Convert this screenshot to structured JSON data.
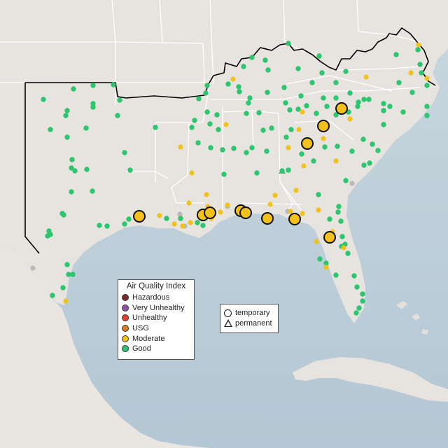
{
  "legend": {
    "title": "Air Quality Index",
    "categories": [
      {
        "label": "Hazardous",
        "color": "#7e2a2a"
      },
      {
        "label": "Very Unhealthy",
        "color": "#8f4fae"
      },
      {
        "label": "Unhealthy",
        "color": "#e0412b"
      },
      {
        "label": "USG",
        "color": "#e07b1a"
      },
      {
        "label": "Moderate",
        "color": "#f2c11b"
      },
      {
        "label": "Good",
        "color": "#2ec56f"
      }
    ]
  },
  "type_legend": {
    "temporary": "temporary",
    "permanent": "permanent"
  },
  "colors": {
    "land": "#e7e3df",
    "gulf_water": "#b7cad6",
    "ocean": "#c9d7de",
    "region_outline": "#000000",
    "state_border": "#ffffff",
    "no_data": "#b9b9b9"
  },
  "icons": {
    "temporary": "circle",
    "permanent": "triangle"
  }
}
